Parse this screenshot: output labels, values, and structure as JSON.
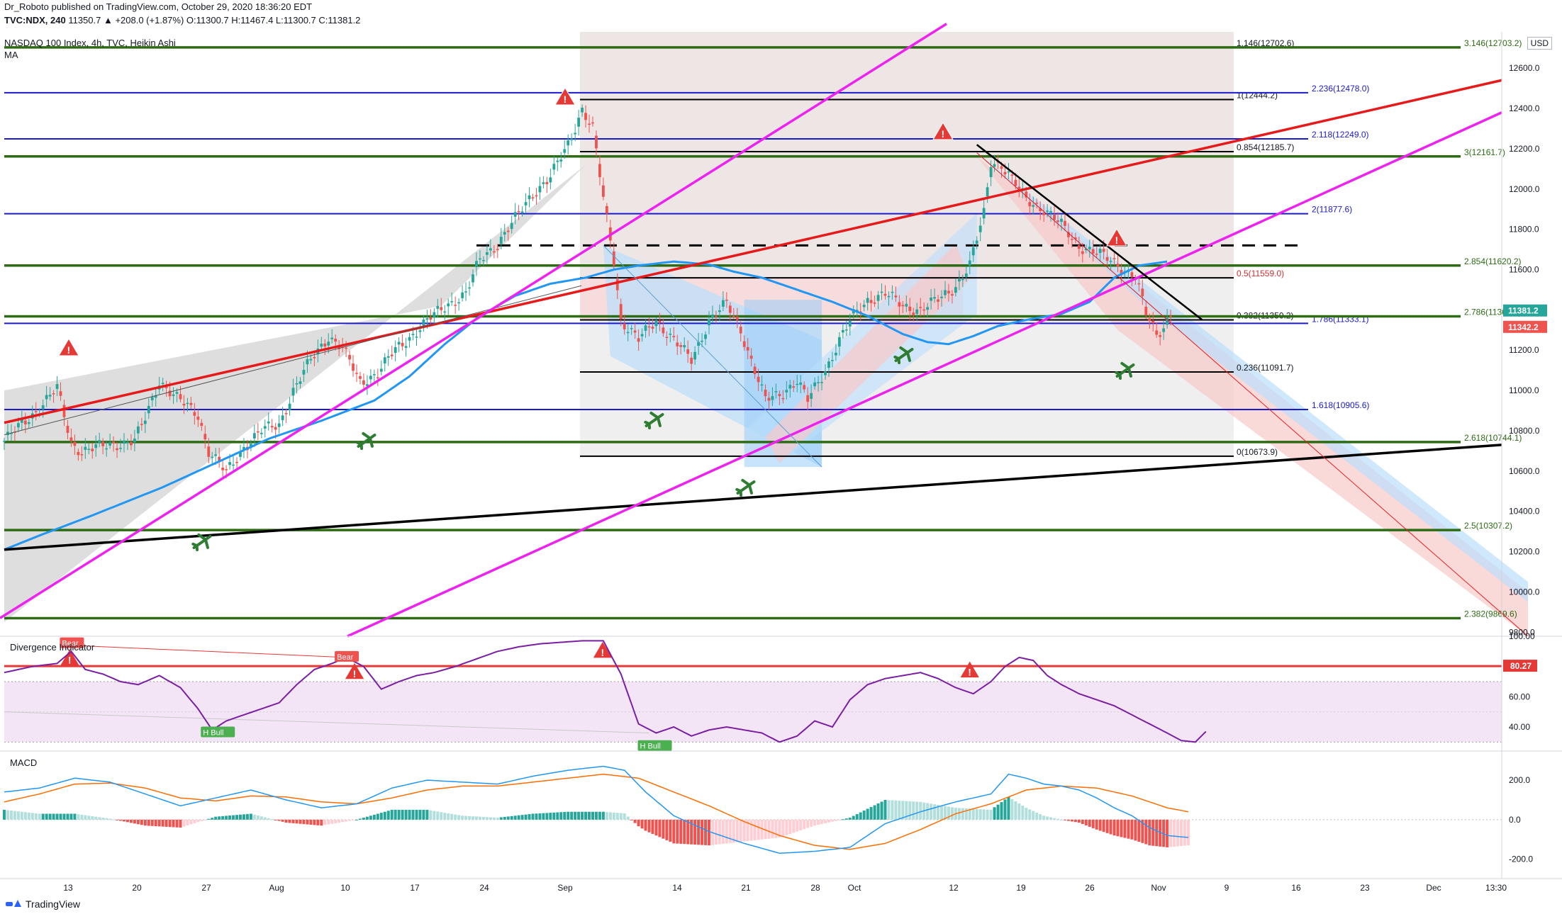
{
  "header": {
    "published": "Dr_Roboto published on TradingView.com, October 29, 2020 18:36:20 EDT",
    "symbol": "TVC:NDX, 240",
    "ohlc": "11350.7 ▲ +208.0 (+1.87%) O:11300.7 H:11467.4 L:11300.7 C:11381.2",
    "title": "NASDAQ 100 Index, 4h, TVC, Heikin Ashi",
    "ma_label": "MA",
    "currency": "USD"
  },
  "colors": {
    "up": "#26a69a",
    "down": "#ef5350",
    "ma": "#2196f3",
    "fib_green": "#2e6b15",
    "fib_blue": "#1a1acf",
    "trend_red": "#e61a1a",
    "magenta": "#ee22ee",
    "osc": "#7b1fa2",
    "macd": "#2196f3",
    "signal": "#ff6d00"
  },
  "chart_data": [
    {
      "type": "candlestick",
      "name": "NASDAQ 100 Index, 4h, TVC, Heikin Ashi",
      "x_ticks": [
        "13",
        "20",
        "27",
        "Aug",
        "10",
        "17",
        "24",
        "Sep",
        "14",
        "21",
        "28",
        "Oct",
        "12",
        "19",
        "26",
        "Nov",
        "9",
        "16",
        "23",
        "Dec",
        "13:30"
      ],
      "y_ticks": [
        "12600.0",
        "12400.0",
        "12200.0",
        "12000.0",
        "11800.0",
        "11600.0",
        "11400.0",
        "11200.0",
        "11000.0",
        "10800.0",
        "10600.0",
        "10400.0",
        "10200.0",
        "10000.0",
        "9800.0"
      ],
      "ylim": [
        9780,
        12780
      ],
      "last_price_labels": [
        {
          "text": "11381.2",
          "value": 11381.2,
          "color": "#26a69a"
        },
        {
          "text": "11342.2",
          "value": 11342.2,
          "color": "#ef5350"
        }
      ],
      "ohlc_control_points": [
        [
          0,
          10750
        ],
        [
          8,
          10880
        ],
        [
          15,
          11010
        ],
        [
          19,
          10740
        ],
        [
          22,
          10700
        ],
        [
          30,
          10730
        ],
        [
          37,
          10750
        ],
        [
          40,
          10860
        ],
        [
          44,
          11050
        ],
        [
          49,
          10960
        ],
        [
          55,
          10880
        ],
        [
          58,
          10700
        ],
        [
          63,
          10590
        ],
        [
          68,
          10720
        ],
        [
          73,
          10800
        ],
        [
          78,
          10830
        ],
        [
          82,
          11000
        ],
        [
          87,
          11150
        ],
        [
          92,
          11270
        ],
        [
          96,
          11210
        ],
        [
          101,
          11040
        ],
        [
          106,
          11090
        ],
        [
          111,
          11200
        ],
        [
          116,
          11280
        ],
        [
          121,
          11360
        ],
        [
          126,
          11430
        ],
        [
          131,
          11480
        ],
        [
          135,
          11650
        ],
        [
          140,
          11730
        ],
        [
          145,
          11850
        ],
        [
          150,
          11980
        ],
        [
          155,
          12060
        ],
        [
          160,
          12220
        ],
        [
          164,
          12400
        ],
        [
          167,
          12300
        ],
        [
          170,
          11950
        ],
        [
          173,
          11650
        ],
        [
          175,
          11350
        ],
        [
          180,
          11250
        ],
        [
          185,
          11350
        ],
        [
          190,
          11250
        ],
        [
          195,
          11150
        ],
        [
          200,
          11350
        ],
        [
          205,
          11430
        ],
        [
          209,
          11300
        ],
        [
          213,
          11100
        ],
        [
          216,
          10950
        ],
        [
          220,
          10980
        ],
        [
          225,
          11050
        ],
        [
          228,
          10950
        ],
        [
          233,
          11100
        ],
        [
          237,
          11250
        ],
        [
          241,
          11370
        ],
        [
          245,
          11450
        ],
        [
          250,
          11480
        ],
        [
          255,
          11420
        ],
        [
          260,
          11400
        ],
        [
          265,
          11450
        ],
        [
          270,
          11520
        ],
        [
          274,
          11620
        ],
        [
          278,
          11880
        ],
        [
          280,
          12140
        ],
        [
          283,
          12120
        ],
        [
          287,
          12020
        ],
        [
          290,
          11950
        ],
        [
          295,
          11900
        ],
        [
          300,
          11820
        ],
        [
          305,
          11720
        ],
        [
          310,
          11680
        ],
        [
          315,
          11640
        ],
        [
          318,
          11600
        ],
        [
          321,
          11560
        ],
        [
          324,
          11380
        ],
        [
          327,
          11280
        ],
        [
          329,
          11320
        ],
        [
          331,
          11381
        ]
      ],
      "moving_average": [
        [
          0,
          10210
        ],
        [
          10,
          10280
        ],
        [
          25,
          10380
        ],
        [
          45,
          10520
        ],
        [
          60,
          10640
        ],
        [
          75,
          10760
        ],
        [
          90,
          10850
        ],
        [
          105,
          10950
        ],
        [
          115,
          11070
        ],
        [
          125,
          11230
        ],
        [
          135,
          11370
        ],
        [
          145,
          11470
        ],
        [
          155,
          11530
        ],
        [
          165,
          11560
        ],
        [
          173,
          11600
        ],
        [
          180,
          11620
        ],
        [
          190,
          11640
        ],
        [
          200,
          11625
        ],
        [
          207,
          11590
        ],
        [
          215,
          11560
        ],
        [
          225,
          11500
        ],
        [
          235,
          11440
        ],
        [
          245,
          11370
        ],
        [
          255,
          11280
        ],
        [
          262,
          11240
        ],
        [
          268,
          11230
        ],
        [
          275,
          11270
        ],
        [
          282,
          11320
        ],
        [
          290,
          11350
        ],
        [
          300,
          11380
        ],
        [
          308,
          11440
        ],
        [
          315,
          11560
        ],
        [
          322,
          11620
        ],
        [
          330,
          11640
        ]
      ],
      "fib_levels_left": [
        {
          "label": "1.146(12702.6)",
          "value": 12702.6
        },
        {
          "label": "1(12444.2)",
          "value": 12444.2
        },
        {
          "label": "0.854(12185.7)",
          "value": 12185.7
        },
        {
          "label": "0.5(11559.0)",
          "value": 11559.0
        },
        {
          "label": "0.382(11350.2)",
          "value": 11350.2
        },
        {
          "label": "0.236(11091.7)",
          "value": 11091.7
        },
        {
          "label": "0(10673.9)",
          "value": 10673.9
        }
      ],
      "fib_levels_blue": [
        {
          "label": "2.236(12478.0)",
          "value": 12478.0
        },
        {
          "label": "2.118(12249.0)",
          "value": 12249.0
        },
        {
          "label": "2(11877.6)",
          "value": 11877.6
        },
        {
          "label": "1.786(11333.1)",
          "value": 11333.1
        },
        {
          "label": "1.618(10905.6)",
          "value": 10905.6
        }
      ],
      "fib_levels_green": [
        {
          "label": "3.146(12703.2)",
          "value": 12703.2
        },
        {
          "label": "3(12161.7)",
          "value": 12161.7
        },
        {
          "label": "2.854(11620.2)",
          "value": 11620.2
        },
        {
          "label": "2.786(11368.0)",
          "value": 11368.0
        },
        {
          "label": "2.618(10744.1)",
          "value": 10744.1
        },
        {
          "label": "2.5(10307.2)",
          "value": 10307.2
        },
        {
          "label": "2.382(9869.6)",
          "value": 9869.6
        }
      ],
      "dashed_level": 11720
    },
    {
      "type": "line",
      "name": "Divergence Indicator",
      "ylim": [
        25,
        100
      ],
      "y_ticks": [
        "100.00",
        "80.00",
        "60.00",
        "40.00"
      ],
      "last_value_label": "80.27",
      "threshold": 80.27,
      "band": [
        30,
        70
      ],
      "labels": [
        {
          "text": "Bear",
          "x": 19,
          "value": 95,
          "kind": "bear"
        },
        {
          "text": "Bear",
          "x": 97,
          "value": 86,
          "kind": "bear"
        },
        {
          "text": "H Bull",
          "x": 59,
          "value": 36,
          "kind": "bull"
        },
        {
          "text": "H Bull",
          "x": 183,
          "value": 27,
          "kind": "bull"
        }
      ],
      "values": [
        [
          0,
          76
        ],
        [
          8,
          80
        ],
        [
          15,
          82
        ],
        [
          19,
          90
        ],
        [
          23,
          78
        ],
        [
          28,
          75
        ],
        [
          33,
          70
        ],
        [
          38,
          68
        ],
        [
          44,
          74
        ],
        [
          50,
          66
        ],
        [
          55,
          52
        ],
        [
          59,
          38
        ],
        [
          63,
          44
        ],
        [
          68,
          48
        ],
        [
          73,
          52
        ],
        [
          78,
          56
        ],
        [
          83,
          68
        ],
        [
          88,
          78
        ],
        [
          93,
          82
        ],
        [
          97,
          86
        ],
        [
          102,
          80
        ],
        [
          107,
          65
        ],
        [
          112,
          70
        ],
        [
          117,
          74
        ],
        [
          122,
          76
        ],
        [
          128,
          80
        ],
        [
          134,
          85
        ],
        [
          140,
          90
        ],
        [
          146,
          93
        ],
        [
          152,
          95
        ],
        [
          158,
          96
        ],
        [
          164,
          97
        ],
        [
          170,
          97
        ],
        [
          175,
          75
        ],
        [
          180,
          42
        ],
        [
          185,
          36
        ],
        [
          190,
          40
        ],
        [
          195,
          34
        ],
        [
          200,
          38
        ],
        [
          205,
          40
        ],
        [
          210,
          38
        ],
        [
          215,
          36
        ],
        [
          220,
          30
        ],
        [
          225,
          34
        ],
        [
          230,
          44
        ],
        [
          235,
          40
        ],
        [
          240,
          58
        ],
        [
          245,
          68
        ],
        [
          250,
          72
        ],
        [
          255,
          74
        ],
        [
          260,
          76
        ],
        [
          265,
          72
        ],
        [
          270,
          66
        ],
        [
          275,
          62
        ],
        [
          280,
          70
        ],
        [
          284,
          80
        ],
        [
          288,
          86
        ],
        [
          292,
          84
        ],
        [
          296,
          74
        ],
        [
          300,
          68
        ],
        [
          305,
          62
        ],
        [
          310,
          58
        ],
        [
          315,
          54
        ],
        [
          320,
          48
        ],
        [
          325,
          42
        ],
        [
          330,
          36
        ],
        [
          334,
          31
        ],
        [
          338,
          30
        ],
        [
          341,
          37
        ]
      ]
    },
    {
      "type": "bar",
      "name": "MACD",
      "ylim": [
        -280,
        340
      ],
      "y_ticks": [
        "200.0",
        "0.0",
        "-200.0"
      ],
      "macd": [
        [
          0,
          140
        ],
        [
          10,
          160
        ],
        [
          20,
          210
        ],
        [
          30,
          190
        ],
        [
          40,
          130
        ],
        [
          50,
          70
        ],
        [
          60,
          110
        ],
        [
          70,
          150
        ],
        [
          80,
          100
        ],
        [
          90,
          60
        ],
        [
          100,
          80
        ],
        [
          110,
          160
        ],
        [
          120,
          200
        ],
        [
          130,
          190
        ],
        [
          140,
          180
        ],
        [
          150,
          220
        ],
        [
          160,
          250
        ],
        [
          170,
          270
        ],
        [
          176,
          250
        ],
        [
          182,
          140
        ],
        [
          190,
          20
        ],
        [
          200,
          -60
        ],
        [
          210,
          -120
        ],
        [
          220,
          -170
        ],
        [
          230,
          -160
        ],
        [
          240,
          -140
        ],
        [
          250,
          -20
        ],
        [
          260,
          40
        ],
        [
          270,
          90
        ],
        [
          280,
          130
        ],
        [
          285,
          230
        ],
        [
          290,
          210
        ],
        [
          295,
          180
        ],
        [
          300,
          170
        ],
        [
          305,
          150
        ],
        [
          310,
          110
        ],
        [
          315,
          60
        ],
        [
          320,
          20
        ],
        [
          325,
          -40
        ],
        [
          330,
          -80
        ],
        [
          336,
          -90
        ]
      ],
      "signal": [
        [
          0,
          90
        ],
        [
          10,
          130
        ],
        [
          20,
          180
        ],
        [
          30,
          185
        ],
        [
          40,
          160
        ],
        [
          50,
          110
        ],
        [
          60,
          95
        ],
        [
          70,
          120
        ],
        [
          80,
          115
        ],
        [
          90,
          90
        ],
        [
          100,
          80
        ],
        [
          110,
          110
        ],
        [
          120,
          150
        ],
        [
          130,
          170
        ],
        [
          140,
          170
        ],
        [
          150,
          190
        ],
        [
          160,
          210
        ],
        [
          170,
          230
        ],
        [
          180,
          210
        ],
        [
          190,
          140
        ],
        [
          200,
          70
        ],
        [
          210,
          -10
        ],
        [
          220,
          -80
        ],
        [
          230,
          -130
        ],
        [
          240,
          -150
        ],
        [
          250,
          -120
        ],
        [
          260,
          -50
        ],
        [
          270,
          30
        ],
        [
          280,
          80
        ],
        [
          290,
          150
        ],
        [
          300,
          170
        ],
        [
          310,
          160
        ],
        [
          320,
          120
        ],
        [
          330,
          60
        ],
        [
          336,
          40
        ]
      ]
    }
  ]
}
